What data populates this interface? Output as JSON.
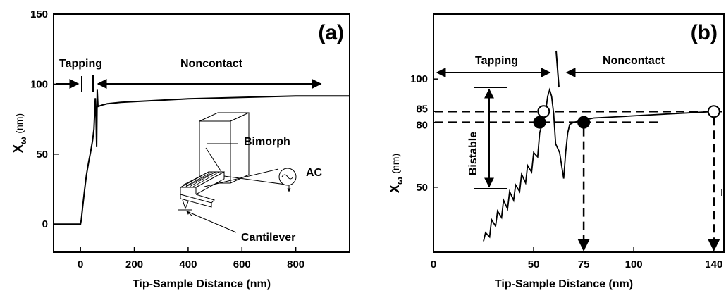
{
  "chart_data": [
    {
      "type": "line",
      "panel_label": "(a)",
      "xlabel": "Tip-Sample Distance (nm)",
      "ylabel_main": "X",
      "ylabel_sub": "ω",
      "ylabel_unit": "(nm)",
      "xlim": [
        -100,
        1000
      ],
      "ylim": [
        -20,
        150
      ],
      "xticks": [
        0,
        200,
        400,
        600,
        800
      ],
      "xtick_labels": [
        "0",
        "200",
        "400",
        "600",
        "800"
      ],
      "yticks": [
        0,
        50,
        100,
        150
      ],
      "ytick_labels": [
        "0",
        "50",
        "100",
        "150"
      ],
      "series": [
        {
          "x": [
            -100,
            0,
            3,
            8,
            15,
            22,
            30,
            38,
            45,
            50,
            55,
            58,
            60,
            62,
            65,
            80,
            100,
            150,
            200,
            300,
            400,
            500,
            600,
            700,
            800,
            900,
            1000
          ],
          "y": [
            0,
            0,
            3,
            12,
            24,
            35,
            44,
            52,
            60,
            68,
            90,
            75,
            55,
            96,
            84,
            85,
            86,
            87,
            87.5,
            88.5,
            89.5,
            90,
            90.5,
            91,
            91.5,
            91.5,
            91.5
          ]
        }
      ],
      "annotations": {
        "tapping": "Tapping",
        "noncontact": "Noncontact",
        "bimorph": "Bimorph",
        "ac": "AC",
        "cantilever": "Cantilever"
      }
    },
    {
      "type": "line",
      "panel_label": "(b)",
      "xlabel": "Tip-Sample Distance (nm)",
      "ylabel_main": "X",
      "ylabel_sub": "ω",
      "ylabel_unit": "(nm)",
      "xlim": [
        0,
        145
      ],
      "ylim": [
        20,
        130
      ],
      "xticks": [
        0,
        50,
        75,
        100,
        140
      ],
      "xtick_labels": [
        "0",
        "50",
        "75",
        "100",
        "140"
      ],
      "yticks": [
        50,
        80,
        85,
        100
      ],
      "ytick_labels": [
        "50",
        "80",
        "85",
        "100"
      ],
      "series": [
        {
          "x": [
            25,
            26,
            28,
            29,
            31,
            32,
            34,
            35,
            37,
            38,
            40,
            41,
            43,
            44,
            46,
            47,
            49,
            50,
            52,
            53,
            55,
            56,
            57,
            58,
            59,
            60,
            61,
            62,
            63,
            64,
            65,
            66,
            67,
            68,
            70,
            75,
            80,
            90,
            100,
            110,
            120,
            130,
            140
          ],
          "y": [
            25,
            29,
            27,
            35,
            32,
            39,
            36,
            44,
            40,
            48,
            44,
            51,
            48,
            56,
            52,
            60,
            57,
            66,
            64,
            75,
            82,
            85,
            92,
            95,
            92,
            84,
            70,
            68,
            66,
            60,
            54,
            66,
            75,
            79,
            80,
            81,
            82,
            82.5,
            83,
            83.5,
            84,
            84.5,
            85
          ]
        }
      ],
      "markers": [
        {
          "x": 55,
          "y": 85,
          "style": "open"
        },
        {
          "x": 140,
          "y": 85,
          "style": "open"
        },
        {
          "x": 53,
          "y": 80,
          "style": "filled"
        },
        {
          "x": 75,
          "y": 80,
          "style": "filled"
        }
      ],
      "reference_lines_y": [
        85,
        80
      ],
      "drop_lines_x": [
        75,
        140
      ],
      "annotations": {
        "tapping": "Tapping",
        "noncontact": "Noncontact",
        "bistable": "Bistable"
      }
    }
  ]
}
